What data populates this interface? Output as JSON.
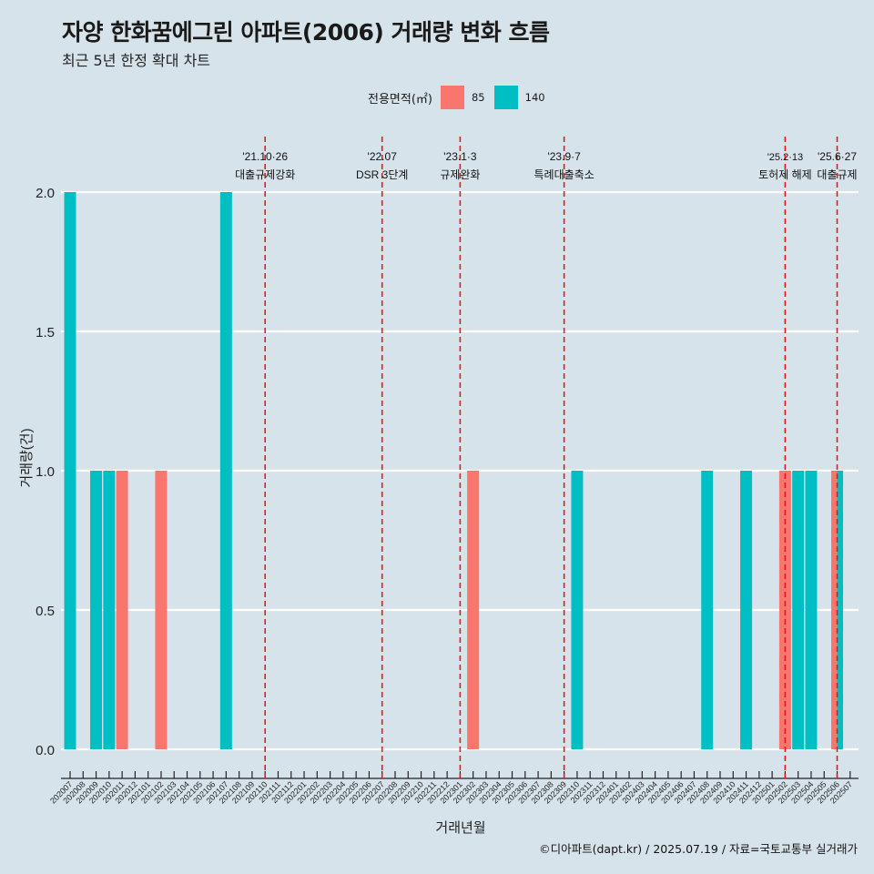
{
  "header": {
    "title": "자양 한화꿈에그린 아파트(2006) 거래량 변화 흐름",
    "subtitle": "최근 5년 한정 확대 차트"
  },
  "legend": {
    "title": "전용면적(㎡)",
    "items": [
      {
        "label": "85",
        "color": "#f8766d"
      },
      {
        "label": "140",
        "color": "#00bfc4"
      }
    ]
  },
  "caption": "©디아파트(dapt.kr) / 2025.07.19 / 자료=국토교통부 실거래가",
  "chart_data": {
    "type": "bar",
    "title": "자양 한화꿈에그린 아파트(2006) 거래량 변화 흐름",
    "subtitle": "최근 5년 한정 확대 차트",
    "xlabel": "거래년월",
    "ylabel": "거래량(건)",
    "ylim": [
      0,
      2
    ],
    "yticks": [
      "0.0",
      "0.5",
      "1.0",
      "1.5",
      "2.0"
    ],
    "ytick_values": [
      0,
      0.5,
      1.0,
      1.5,
      2.0
    ],
    "grid": true,
    "legend_position": "top",
    "categories": [
      "202007",
      "202008",
      "202009",
      "202010",
      "202011",
      "202012",
      "202101",
      "202102",
      "202103",
      "202104",
      "202105",
      "202106",
      "202107",
      "202108",
      "202109",
      "202110",
      "202111",
      "202112",
      "202201",
      "202202",
      "202203",
      "202204",
      "202205",
      "202206",
      "202207",
      "202208",
      "202209",
      "202210",
      "202211",
      "202212",
      "202301",
      "202302",
      "202303",
      "202304",
      "202305",
      "202306",
      "202307",
      "202308",
      "202309",
      "202310",
      "202311",
      "202312",
      "202401",
      "202402",
      "202403",
      "202404",
      "202405",
      "202406",
      "202407",
      "202408",
      "202409",
      "202410",
      "202411",
      "202412",
      "202501",
      "202502",
      "202503",
      "202504",
      "202505",
      "202506",
      "202507"
    ],
    "series": [
      {
        "name": "85",
        "color": "#f8766d",
        "values": [
          0,
          0,
          0,
          0,
          1,
          0,
          0,
          1,
          0,
          0,
          0,
          0,
          0,
          0,
          0,
          0,
          0,
          0,
          0,
          0,
          0,
          0,
          0,
          0,
          0,
          0,
          0,
          0,
          0,
          0,
          0,
          1,
          0,
          0,
          0,
          0,
          0,
          0,
          0,
          0,
          0,
          0,
          0,
          0,
          0,
          0,
          0,
          0,
          0,
          0,
          0,
          0,
          0,
          0,
          0,
          1,
          0,
          0,
          0,
          1,
          0
        ]
      },
      {
        "name": "140",
        "color": "#00bfc4",
        "values": [
          2,
          0,
          1,
          1,
          0,
          0,
          0,
          0,
          0,
          0,
          0,
          0,
          2,
          0,
          0,
          0,
          0,
          0,
          0,
          0,
          0,
          0,
          0,
          0,
          0,
          0,
          0,
          0,
          0,
          0,
          0,
          0,
          0,
          0,
          0,
          0,
          0,
          0,
          0,
          1,
          0,
          0,
          0,
          0,
          0,
          0,
          0,
          0,
          0,
          1,
          0,
          0,
          1,
          0,
          0,
          0,
          1,
          1,
          0,
          1,
          0
        ]
      }
    ],
    "annotations": [
      {
        "category": "202110",
        "date": "'21.10·26",
        "label": "대출규제강화"
      },
      {
        "category": "202207",
        "date": "'22.07",
        "label": "DSR 3단계"
      },
      {
        "category": "202301",
        "date": "'23.1·3",
        "label": "규제완화"
      },
      {
        "category": "202309",
        "date": "'23.9·7",
        "label": "특례대출축소"
      },
      {
        "category": "202502",
        "date": "'25.2·13",
        "label": "토허제 해제"
      },
      {
        "category": "202506",
        "date": "'25.6·27",
        "label": "대출규제"
      }
    ],
    "annotation_line_color": "#e41a1c"
  }
}
